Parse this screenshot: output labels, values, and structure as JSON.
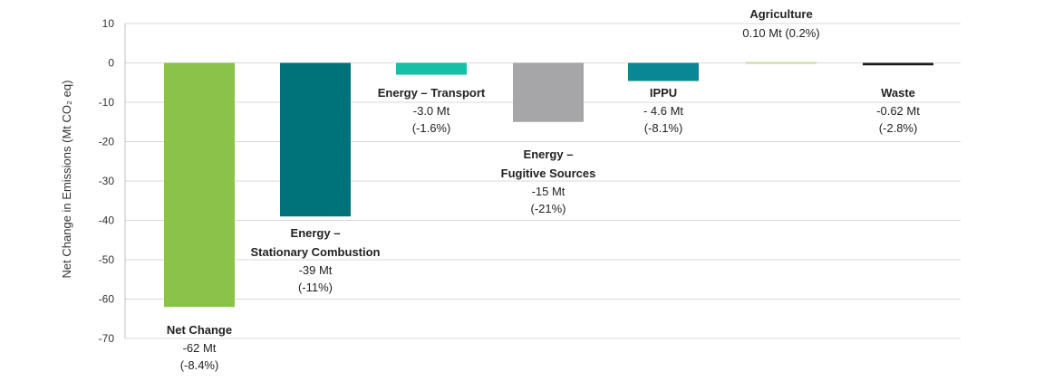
{
  "chart_data": {
    "type": "bar",
    "ylabel": "Net Change in Emissions (Mt CO₂ eq)",
    "ylim": [
      -70,
      10
    ],
    "yticks": [
      10,
      0,
      -10,
      -20,
      -30,
      -40,
      -50,
      -60,
      -70
    ],
    "grid": true,
    "bars": [
      {
        "name_lines": [
          "Net Change"
        ],
        "value": -62,
        "value_lines": [
          "-62 Mt",
          "(-8.4%)"
        ],
        "color": "#8bc34a"
      },
      {
        "name_lines": [
          "Energy –",
          "Stationary Combustion"
        ],
        "value": -39,
        "value_lines": [
          "-39 Mt",
          "(-11%)"
        ],
        "color": "#00727a"
      },
      {
        "name_lines": [
          "Energy – Transport"
        ],
        "value": -3.0,
        "value_lines": [
          "-3.0 Mt",
          "(-1.6%)"
        ],
        "color": "#16c0a4"
      },
      {
        "name_lines": [
          "Energy –",
          "Fugitive Sources"
        ],
        "value": -15,
        "value_lines": [
          "-15 Mt",
          "(-21%)"
        ],
        "color": "#a6a6a8"
      },
      {
        "name_lines": [
          "IPPU"
        ],
        "value": -4.6,
        "value_lines": [
          "- 4.6 Mt",
          "(-8.1%)"
        ],
        "color": "#0a8794"
      },
      {
        "name_lines": [
          "Agriculture"
        ],
        "value": 0.1,
        "value_lines": [
          "0.10 Mt (0.2%)"
        ],
        "color": "#c5d9a0"
      },
      {
        "name_lines": [
          "Waste"
        ],
        "value": -0.62,
        "value_lines": [
          "-0.62 Mt",
          "(-2.8%)"
        ],
        "color": "#1a1a1a"
      }
    ]
  }
}
